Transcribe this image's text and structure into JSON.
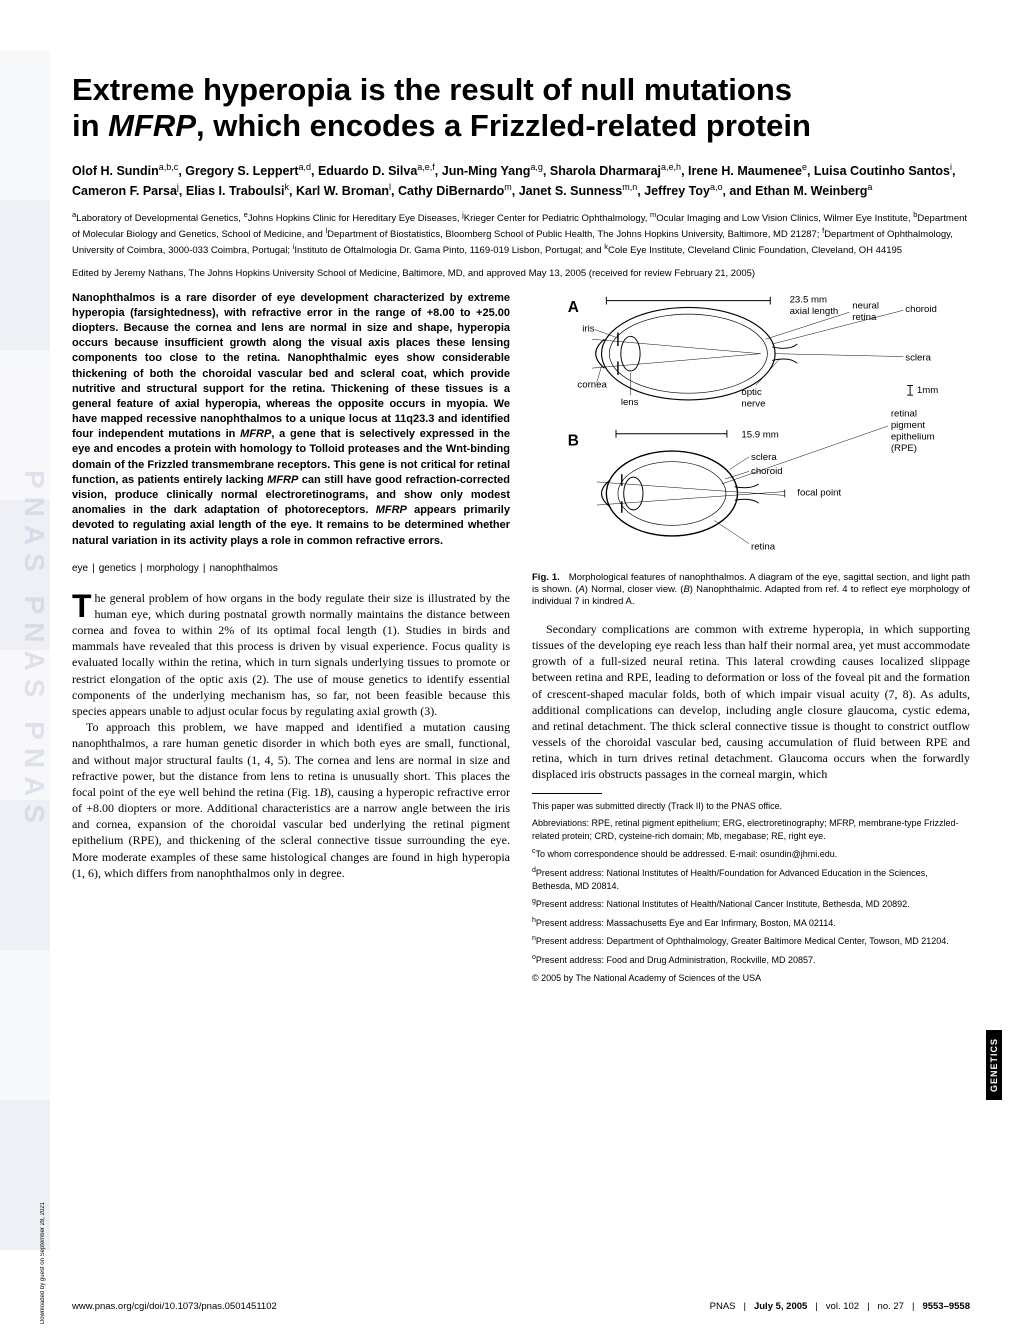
{
  "title_line1": "Extreme hyperopia is the result of null mutations",
  "title_line2_pre": "in ",
  "title_line2_italic": "MFRP",
  "title_line2_post": ", which encodes a Frizzled-related protein",
  "authors_html": "Olof H. Sundin<sup>a,b,c</sup>, Gregory S. Leppert<sup>a,d</sup>, Eduardo D. Silva<sup>a,e,f</sup>, Jun-Ming Yang<sup>a,g</sup>, Sharola Dharmaraj<sup>a,e,h</sup>, Irene H. Maumenee<sup>e</sup>, Luisa Coutinho Santos<sup>i</sup>, Cameron F. Parsa<sup>j</sup>, Elias I. Traboulsi<sup>k</sup>, Karl W. Broman<sup>l</sup>, Cathy DiBernardo<sup>m</sup>, Janet S. Sunness<sup>m,n</sup>, Jeffrey Toy<sup>a,o</sup>, and Ethan M. Weinberg<sup>a</sup>",
  "affiliations_html": "<sup>a</sup>Laboratory of Developmental Genetics, <sup>e</sup>Johns Hopkins Clinic for Hereditary Eye Diseases, <sup>j</sup>Krieger Center for Pediatric Ophthalmology, <sup>m</sup>Ocular Imaging and Low Vision Clinics, Wilmer Eye Institute, <sup>b</sup>Department of Molecular Biology and Genetics, School of Medicine, and <sup>l</sup>Department of Biostatistics, Bloomberg School of Public Health, The Johns Hopkins University, Baltimore, MD 21287; <sup>f</sup>Department of Ophthalmology, University of Coimbra, 3000-033 Coimbra, Portugal; <sup>i</sup>Instituto de Oftalmologia Dr. Gama Pinto, 1169-019 Lisbon, Portugal; and <sup>k</sup>Cole Eye Institute, Cleveland Clinic Foundation, Cleveland, OH 44195",
  "edited": "Edited by Jeremy Nathans, The Johns Hopkins University School of Medicine, Baltimore, MD, and approved May 13, 2005 (received for review February 21, 2005)",
  "abstract_html": "Nanophthalmos is a rare disorder of eye development characterized by extreme hyperopia (farsightedness), with refractive error in the range of +8.00 to +25.00 diopters. Because the cornea and lens are normal in size and shape, hyperopia occurs because insufficient growth along the visual axis places these lensing components too close to the retina. Nanophthalmic eyes show considerable thickening of both the choroidal vascular bed and scleral coat, which provide nutritive and structural support for the retina. Thickening of these tissues is a general feature of axial hyperopia, whereas the opposite occurs in myopia. We have mapped recessive nanophthalmos to a unique locus at 11q23.3 and identified four independent mutations in <span class=\"italic\">MFRP</span>, a gene that is selectively expressed in the eye and encodes a protein with homology to Tolloid proteases and the Wnt-binding domain of the Frizzled transmembrane receptors. This gene is not critical for retinal function, as patients entirely lacking <span class=\"italic\">MFRP</span> can still have good refraction-corrected vision, produce clinically normal electroretinograms, and show only modest anomalies in the dark adaptation of photoreceptors. <span class=\"italic\">MFRP</span> appears primarily devoted to regulating axial length of the eye. It remains to be determined whether natural variation in its activity plays a role in common refractive errors.",
  "keywords": {
    "k1": "eye",
    "k2": "genetics",
    "k3": "morphology",
    "k4": "nanophthalmos"
  },
  "body_para1": "he general problem of how organs in the body regulate their size is illustrated by the human eye, which during postnatal growth normally maintains the distance between cornea and fovea to within 2% of its optimal focal length (1). Studies in birds and mammals have revealed that this process is driven by visual experience. Focus quality is evaluated locally within the retina, which in turn signals underlying tissues to promote or restrict elongation of the optic axis (2). The use of mouse genetics to identify essential components of the underlying mechanism has, so far, not been feasible because this species appears unable to adjust ocular focus by regulating axial growth (3).",
  "body_para2_html": "To approach this problem, we have mapped and identified a mutation causing nanophthalmos, a rare human genetic disorder in which both eyes are small, functional, and without major structural faults (1, 4, 5). The cornea and lens are normal in size and refractive power, but the distance from lens to retina is unusually short. This places the focal point of the eye well behind the retina (Fig. 1<i>B</i>), causing a hyperopic refractive error of +8.00 diopters or more. Additional characteristics are a narrow angle between the iris and cornea, expansion of the choroidal vascular bed underlying the retinal pigment epithelium (RPE), and thickening of the scleral connective tissue surrounding the eye. More moderate examples of these same histological changes are found in high hyperopia (1, 6), which differs from nanophthalmos only in degree.",
  "body_para3": "Secondary complications are common with extreme hyperopia, in which supporting tissues of the developing eye reach less than half their normal area, yet must accommodate growth of a full-sized neural retina. This lateral crowding causes localized slippage between retina and RPE, leading to deformation or loss of the foveal pit and the formation of crescent-shaped macular folds, both of which impair visual acuity (7, 8). As adults, additional complications can develop, including angle closure glaucoma, cystic edema, and retinal detachment. The thick scleral connective tissue is thought to constrict outflow vessels of the choroidal vascular bed, causing accumulation of fluid between RPE and retina, which in turn drives retinal detachment. Glaucoma occurs when the forwardly displaced iris obstructs passages in the corneal margin, which",
  "figure": {
    "label_A": "A",
    "label_B": "B",
    "axial_normal": "23.5 mm",
    "axial_label": "axial length",
    "axial_nano": "15.9 mm",
    "iris": "iris",
    "cornea": "cornea",
    "lens": "lens",
    "neural_retina": "neural\nretina",
    "choroid": "choroid",
    "sclera": "sclera",
    "optic_nerve": "optic\nnerve",
    "one_mm": "1mm",
    "rpe": "retinal\npigment\nepithelium\n(RPE)",
    "focal_point": "focal point",
    "retina": "retina",
    "caption_html": "<b>Fig. 1.</b>&nbsp;&nbsp;&nbsp;Morphological features of nanophthalmos. A diagram of the eye, sagittal section, and light path is shown. (<i>A</i>) Normal, closer view. (<i>B</i>) Nanophthalmic. Adapted from ref. 4 to reflect eye morphology of individual 7 in kindred A.",
    "colors": {
      "stroke": "#000000",
      "fill": "none",
      "text": "#000000"
    }
  },
  "footnotes": {
    "track": "This paper was submitted directly (Track II) to the PNAS office.",
    "abbrev": "Abbreviations: RPE, retinal pigment epithelium; ERG, electroretinography; MFRP, membrane-type Frizzled-related protein; CRD, cysteine-rich domain; Mb, megabase; RE, right eye.",
    "corr": "<sup>c</sup>To whom correspondence should be addressed. E-mail: osundin@jhmi.edu.",
    "d": "<sup>d</sup>Present address: National Institutes of Health/Foundation for Advanced Education in the Sciences, Bethesda, MD 20814.",
    "g": "<sup>g</sup>Present address: National Institutes of Health/National Cancer Institute, Bethesda, MD 20892.",
    "h": "<sup>h</sup>Present address: Massachusetts Eye and Ear Infirmary, Boston, MA 02114.",
    "n": "<sup>n</sup>Present address: Department of Ophthalmology, Greater Baltimore Medical Center, Towson, MD 21204.",
    "o": "<sup>o</sup>Present address: Food and Drug Administration, Rockville, MD 20857.",
    "copyright": "© 2005 by The National Academy of Sciences of the USA"
  },
  "side_label": "GENETICS",
  "download_note": "Downloaded by guest on September 28, 2021",
  "footer": {
    "doi": "www.pnas.org/cgi/doi/10.1073/pnas.0501451102",
    "journal": "PNAS",
    "date": "July 5, 2005",
    "vol": "vol. 102",
    "no": "no. 27",
    "pages": "9553–9558"
  }
}
